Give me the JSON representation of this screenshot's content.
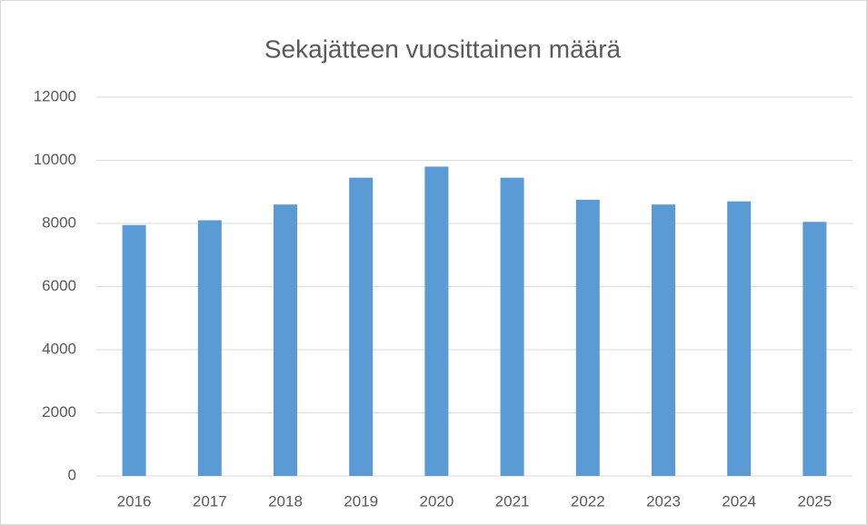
{
  "chart_data": {
    "type": "bar",
    "title": "Sekajätteen vuosittainen määrä",
    "categories": [
      "2016",
      "2017",
      "2018",
      "2019",
      "2020",
      "2021",
      "2022",
      "2023",
      "2024",
      "2025"
    ],
    "values": [
      7950,
      8100,
      8600,
      9450,
      9800,
      9450,
      8750,
      8600,
      8700,
      8050
    ],
    "color": "#5b9bd5",
    "ylim": [
      0,
      12000
    ],
    "yticks": [
      0,
      2000,
      4000,
      6000,
      8000,
      10000,
      12000
    ],
    "grid": true
  }
}
